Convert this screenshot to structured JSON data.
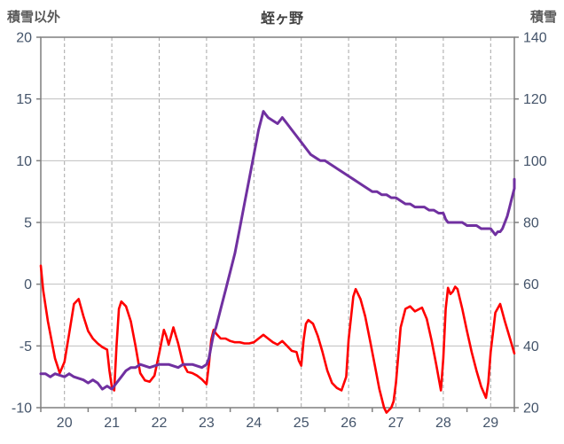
{
  "chart_data": {
    "type": "line",
    "title": "蛭ヶ野",
    "x_range": [
      19.5,
      29.5
    ],
    "x_ticks": [
      20,
      21,
      22,
      23,
      24,
      25,
      26,
      27,
      28,
      29
    ],
    "y_left": {
      "title": "積雪以外",
      "range": [
        -10,
        20
      ],
      "ticks": [
        20,
        15,
        10,
        5,
        0,
        -5,
        -10
      ]
    },
    "y_right": {
      "title": "積雪",
      "range": [
        20,
        140
      ],
      "ticks": [
        140,
        120,
        100,
        80,
        60,
        40,
        20
      ]
    },
    "grid": "on",
    "legend": "none",
    "colors": {
      "grid": "#BFBFBF",
      "grid_dash": "#A6A6A6",
      "axis": "#7F7F7F",
      "axis_text": "#44546A",
      "title_text": "#404040",
      "axis_title_text": "#595959"
    },
    "series": [
      {
        "id": "red-line",
        "axis": "left",
        "color": "#FF0000",
        "width": 2.6,
        "points": [
          [
            19.5,
            1.5
          ],
          [
            19.55,
            -0.5
          ],
          [
            19.65,
            -3
          ],
          [
            19.8,
            -6
          ],
          [
            19.9,
            -7.2
          ],
          [
            20.0,
            -6.3
          ],
          [
            20.1,
            -4
          ],
          [
            20.2,
            -1.6
          ],
          [
            20.3,
            -1.2
          ],
          [
            20.4,
            -2.6
          ],
          [
            20.5,
            -3.8
          ],
          [
            20.6,
            -4.4
          ],
          [
            20.7,
            -4.8
          ],
          [
            20.8,
            -5.1
          ],
          [
            20.9,
            -5.3
          ],
          [
            20.95,
            -7
          ],
          [
            21.0,
            -8.3
          ],
          [
            21.05,
            -8.6
          ],
          [
            21.1,
            -5
          ],
          [
            21.15,
            -2
          ],
          [
            21.2,
            -1.4
          ],
          [
            21.3,
            -1.8
          ],
          [
            21.4,
            -3
          ],
          [
            21.5,
            -5
          ],
          [
            21.6,
            -7.2
          ],
          [
            21.7,
            -7.8
          ],
          [
            21.8,
            -7.9
          ],
          [
            21.9,
            -7.4
          ],
          [
            22.0,
            -5.6
          ],
          [
            22.1,
            -3.7
          ],
          [
            22.15,
            -4.2
          ],
          [
            22.2,
            -4.9
          ],
          [
            22.25,
            -4.2
          ],
          [
            22.3,
            -3.5
          ],
          [
            22.4,
            -4.8
          ],
          [
            22.5,
            -6.4
          ],
          [
            22.6,
            -7.1
          ],
          [
            22.7,
            -7.2
          ],
          [
            22.8,
            -7.4
          ],
          [
            22.9,
            -7.7
          ],
          [
            23.0,
            -8.1
          ],
          [
            23.05,
            -6.5
          ],
          [
            23.1,
            -4.5
          ],
          [
            23.15,
            -3.7
          ],
          [
            23.2,
            -4.0
          ],
          [
            23.3,
            -4.4
          ],
          [
            23.4,
            -4.4
          ],
          [
            23.5,
            -4.6
          ],
          [
            23.6,
            -4.7
          ],
          [
            23.7,
            -4.7
          ],
          [
            23.8,
            -4.8
          ],
          [
            23.9,
            -4.8
          ],
          [
            24.0,
            -4.7
          ],
          [
            24.1,
            -4.4
          ],
          [
            24.2,
            -4.1
          ],
          [
            24.3,
            -4.4
          ],
          [
            24.4,
            -4.7
          ],
          [
            24.5,
            -4.9
          ],
          [
            24.6,
            -4.6
          ],
          [
            24.7,
            -5.0
          ],
          [
            24.8,
            -5.4
          ],
          [
            24.9,
            -5.5
          ],
          [
            24.95,
            -6.2
          ],
          [
            25.0,
            -6.6
          ],
          [
            25.05,
            -4.5
          ],
          [
            25.1,
            -3.2
          ],
          [
            25.15,
            -2.9
          ],
          [
            25.25,
            -3.2
          ],
          [
            25.35,
            -4.2
          ],
          [
            25.45,
            -5.5
          ],
          [
            25.55,
            -7.0
          ],
          [
            25.65,
            -8.0
          ],
          [
            25.75,
            -8.4
          ],
          [
            25.85,
            -8.6
          ],
          [
            25.95,
            -7.5
          ],
          [
            26.0,
            -4.5
          ],
          [
            26.1,
            -1.0
          ],
          [
            26.15,
            -0.4
          ],
          [
            26.25,
            -1.2
          ],
          [
            26.35,
            -2.6
          ],
          [
            26.45,
            -4.5
          ],
          [
            26.55,
            -6.5
          ],
          [
            26.65,
            -8.5
          ],
          [
            26.75,
            -10.0
          ],
          [
            26.8,
            -10.4
          ],
          [
            26.9,
            -10.0
          ],
          [
            26.95,
            -9.5
          ],
          [
            27.0,
            -8.0
          ],
          [
            27.1,
            -3.5
          ],
          [
            27.2,
            -2.0
          ],
          [
            27.3,
            -1.8
          ],
          [
            27.4,
            -2.2
          ],
          [
            27.5,
            -2.0
          ],
          [
            27.55,
            -1.9
          ],
          [
            27.65,
            -2.8
          ],
          [
            27.75,
            -4.5
          ],
          [
            27.85,
            -6.5
          ],
          [
            27.95,
            -8.6
          ],
          [
            28.0,
            -6.0
          ],
          [
            28.05,
            -2.0
          ],
          [
            28.1,
            -0.3
          ],
          [
            28.15,
            -0.8
          ],
          [
            28.2,
            -0.6
          ],
          [
            28.25,
            -0.2
          ],
          [
            28.3,
            -0.4
          ],
          [
            28.4,
            -2.0
          ],
          [
            28.5,
            -3.8
          ],
          [
            28.6,
            -5.5
          ],
          [
            28.7,
            -7.0
          ],
          [
            28.8,
            -8.3
          ],
          [
            28.9,
            -9.2
          ],
          [
            28.95,
            -8.0
          ],
          [
            29.0,
            -5.5
          ],
          [
            29.1,
            -2.3
          ],
          [
            29.2,
            -1.6
          ],
          [
            29.3,
            -3.0
          ],
          [
            29.4,
            -4.3
          ],
          [
            29.5,
            -5.6
          ]
        ]
      },
      {
        "id": "purple-line",
        "axis": "right",
        "color": "#7030A0",
        "width": 3,
        "points": [
          [
            19.5,
            31
          ],
          [
            19.6,
            31
          ],
          [
            19.7,
            30
          ],
          [
            19.8,
            31
          ],
          [
            20.0,
            30
          ],
          [
            20.1,
            31
          ],
          [
            20.2,
            30
          ],
          [
            20.4,
            29
          ],
          [
            20.5,
            28
          ],
          [
            20.6,
            29
          ],
          [
            20.7,
            28
          ],
          [
            20.8,
            26
          ],
          [
            20.9,
            27
          ],
          [
            21.0,
            26
          ],
          [
            21.1,
            28
          ],
          [
            21.2,
            30
          ],
          [
            21.3,
            32
          ],
          [
            21.4,
            33
          ],
          [
            21.5,
            33
          ],
          [
            21.6,
            34
          ],
          [
            21.8,
            33
          ],
          [
            22.0,
            34
          ],
          [
            22.2,
            34
          ],
          [
            22.4,
            33
          ],
          [
            22.5,
            34
          ],
          [
            22.7,
            34
          ],
          [
            22.9,
            33
          ],
          [
            23.0,
            34
          ],
          [
            23.05,
            36
          ],
          [
            23.1,
            40
          ],
          [
            23.15,
            44
          ],
          [
            23.2,
            46
          ],
          [
            23.3,
            52
          ],
          [
            23.4,
            58
          ],
          [
            23.5,
            64
          ],
          [
            23.6,
            70
          ],
          [
            23.7,
            78
          ],
          [
            23.8,
            86
          ],
          [
            23.9,
            94
          ],
          [
            24.0,
            102
          ],
          [
            24.05,
            106
          ],
          [
            24.1,
            110
          ],
          [
            24.15,
            113
          ],
          [
            24.2,
            116
          ],
          [
            24.25,
            115
          ],
          [
            24.3,
            114
          ],
          [
            24.4,
            113
          ],
          [
            24.5,
            112
          ],
          [
            24.55,
            113
          ],
          [
            24.6,
            114
          ],
          [
            24.7,
            112
          ],
          [
            24.8,
            110
          ],
          [
            24.9,
            108
          ],
          [
            25.0,
            106
          ],
          [
            25.1,
            104
          ],
          [
            25.2,
            102
          ],
          [
            25.3,
            101
          ],
          [
            25.4,
            100
          ],
          [
            25.5,
            100
          ],
          [
            25.6,
            99
          ],
          [
            25.7,
            98
          ],
          [
            25.8,
            97
          ],
          [
            25.9,
            96
          ],
          [
            26.0,
            95
          ],
          [
            26.1,
            94
          ],
          [
            26.2,
            93
          ],
          [
            26.3,
            92
          ],
          [
            26.4,
            91
          ],
          [
            26.5,
            90
          ],
          [
            26.6,
            90
          ],
          [
            26.7,
            89
          ],
          [
            26.8,
            89
          ],
          [
            26.9,
            88
          ],
          [
            27.0,
            88
          ],
          [
            27.1,
            87
          ],
          [
            27.2,
            86
          ],
          [
            27.3,
            86
          ],
          [
            27.4,
            85
          ],
          [
            27.5,
            85
          ],
          [
            27.6,
            85
          ],
          [
            27.7,
            84
          ],
          [
            27.8,
            84
          ],
          [
            27.9,
            83
          ],
          [
            28.0,
            83
          ],
          [
            28.05,
            81
          ],
          [
            28.1,
            80
          ],
          [
            28.2,
            80
          ],
          [
            28.3,
            80
          ],
          [
            28.4,
            80
          ],
          [
            28.5,
            79
          ],
          [
            28.6,
            79
          ],
          [
            28.7,
            79
          ],
          [
            28.8,
            78
          ],
          [
            28.9,
            78
          ],
          [
            29.0,
            78
          ],
          [
            29.05,
            77
          ],
          [
            29.1,
            76
          ],
          [
            29.15,
            77
          ],
          [
            29.2,
            77
          ],
          [
            29.25,
            78
          ],
          [
            29.3,
            80
          ],
          [
            29.35,
            82
          ],
          [
            29.4,
            85
          ],
          [
            29.45,
            88
          ],
          [
            29.5,
            91
          ],
          [
            29.5,
            94
          ]
        ]
      }
    ]
  }
}
